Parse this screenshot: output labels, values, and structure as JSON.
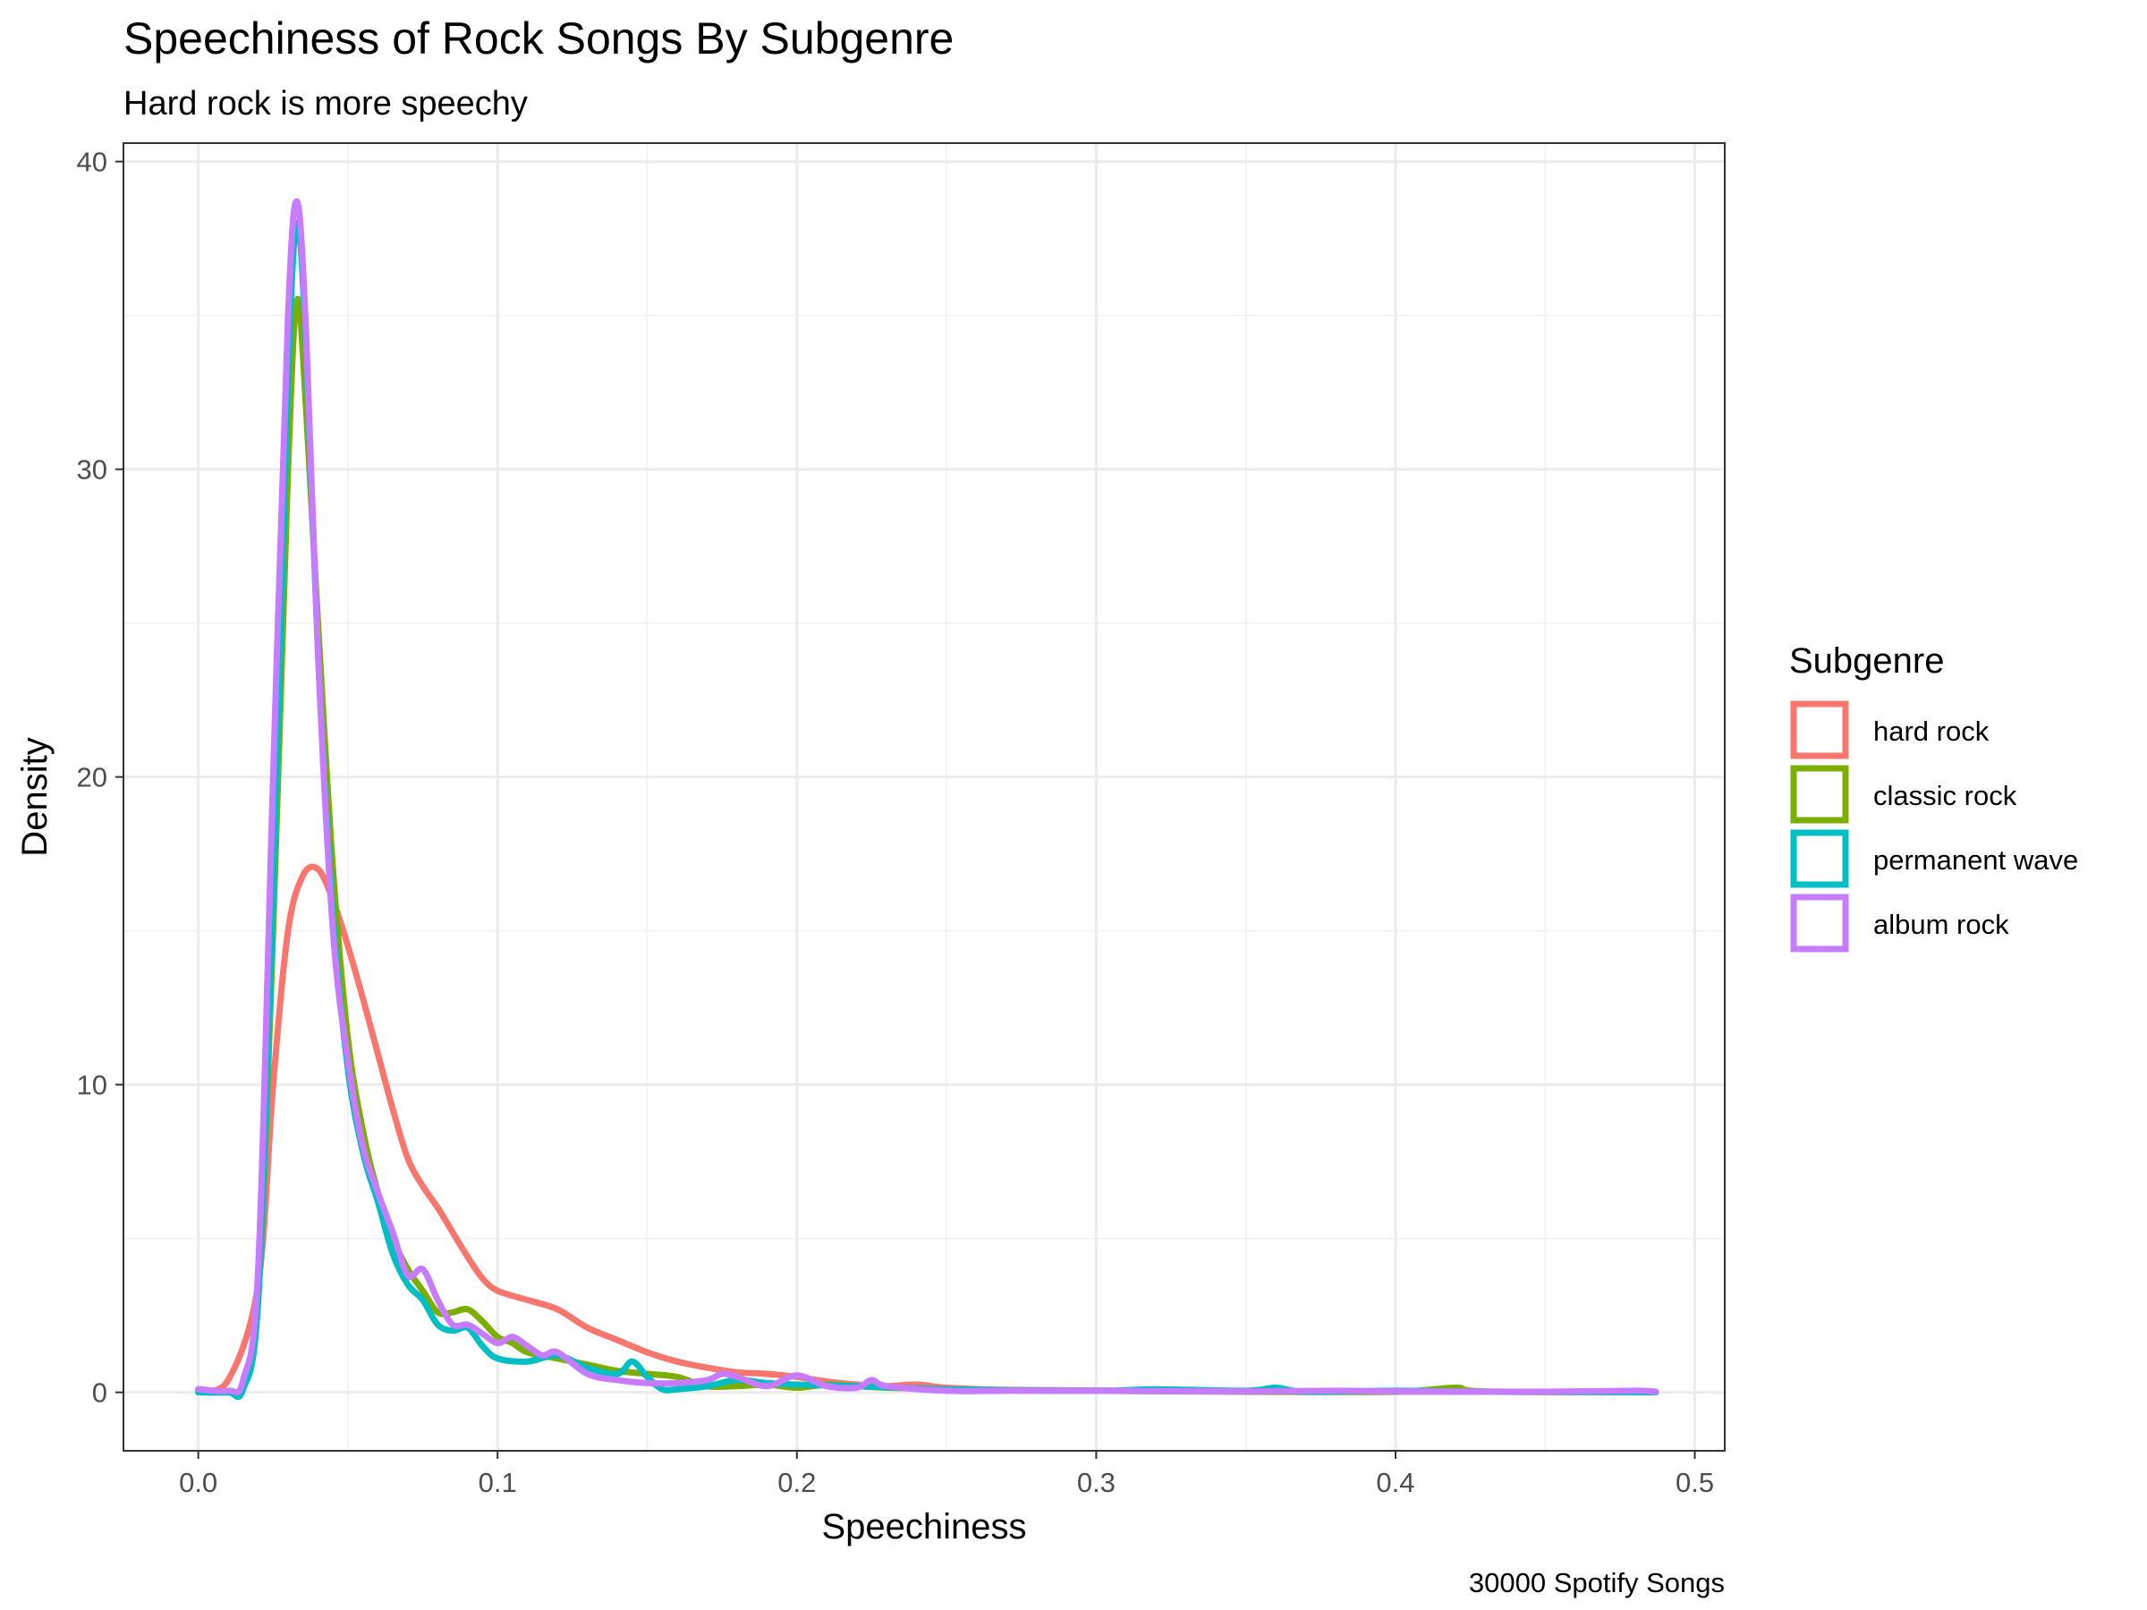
{
  "chart_data": {
    "type": "line",
    "title": "Speechiness of Rock Songs By Subgenre",
    "subtitle": "Hard rock is more speechy",
    "xlabel": "Speechiness",
    "ylabel": "Density",
    "caption": "30000 Spotify Songs",
    "xlim": [
      -0.025,
      0.51
    ],
    "ylim": [
      -1.9,
      40.6
    ],
    "x_ticks": [
      0.0,
      0.1,
      0.2,
      0.3,
      0.4,
      0.5
    ],
    "x_tick_labels": [
      "0.0",
      "0.1",
      "0.2",
      "0.3",
      "0.4",
      "0.5"
    ],
    "y_ticks": [
      0,
      10,
      20,
      30,
      40
    ],
    "y_tick_labels": [
      "0",
      "10",
      "20",
      "30",
      "40"
    ],
    "grid": true,
    "legend": {
      "title": "Subgenre",
      "placement": "right"
    },
    "series": [
      {
        "name": "hard rock",
        "color": "#F8766D",
        "points": [
          [
            0.0,
            0.1
          ],
          [
            0.01,
            0.4
          ],
          [
            0.02,
            3.5
          ],
          [
            0.025,
            10.0
          ],
          [
            0.03,
            15.0
          ],
          [
            0.035,
            16.8
          ],
          [
            0.04,
            17.0
          ],
          [
            0.045,
            16.0
          ],
          [
            0.05,
            14.5
          ],
          [
            0.055,
            12.8
          ],
          [
            0.06,
            11.0
          ],
          [
            0.065,
            9.2
          ],
          [
            0.07,
            7.6
          ],
          [
            0.075,
            6.7
          ],
          [
            0.08,
            6.0
          ],
          [
            0.085,
            5.2
          ],
          [
            0.09,
            4.4
          ],
          [
            0.095,
            3.7
          ],
          [
            0.1,
            3.3
          ],
          [
            0.11,
            3.0
          ],
          [
            0.12,
            2.7
          ],
          [
            0.13,
            2.1
          ],
          [
            0.14,
            1.7
          ],
          [
            0.15,
            1.3
          ],
          [
            0.16,
            1.0
          ],
          [
            0.17,
            0.8
          ],
          [
            0.18,
            0.65
          ],
          [
            0.19,
            0.6
          ],
          [
            0.2,
            0.5
          ],
          [
            0.21,
            0.35
          ],
          [
            0.22,
            0.25
          ],
          [
            0.23,
            0.2
          ],
          [
            0.24,
            0.25
          ],
          [
            0.25,
            0.15
          ],
          [
            0.27,
            0.08
          ],
          [
            0.3,
            0.06
          ],
          [
            0.35,
            0.03
          ],
          [
            0.4,
            0.02
          ],
          [
            0.45,
            0.02
          ],
          [
            0.487,
            0.01
          ]
        ]
      },
      {
        "name": "classic rock",
        "color": "#7CAE00",
        "points": [
          [
            0.0,
            0.1
          ],
          [
            0.01,
            0.0
          ],
          [
            0.015,
            0.3
          ],
          [
            0.02,
            3.0
          ],
          [
            0.025,
            15.0
          ],
          [
            0.03,
            30.0
          ],
          [
            0.033,
            35.5
          ],
          [
            0.036,
            32.0
          ],
          [
            0.04,
            25.0
          ],
          [
            0.045,
            17.0
          ],
          [
            0.05,
            11.5
          ],
          [
            0.055,
            8.5
          ],
          [
            0.06,
            6.5
          ],
          [
            0.065,
            5.0
          ],
          [
            0.07,
            4.0
          ],
          [
            0.075,
            3.3
          ],
          [
            0.08,
            2.6
          ],
          [
            0.085,
            2.6
          ],
          [
            0.09,
            2.7
          ],
          [
            0.095,
            2.3
          ],
          [
            0.1,
            1.8
          ],
          [
            0.105,
            1.6
          ],
          [
            0.11,
            1.3
          ],
          [
            0.12,
            1.1
          ],
          [
            0.13,
            0.9
          ],
          [
            0.14,
            0.7
          ],
          [
            0.15,
            0.6
          ],
          [
            0.16,
            0.5
          ],
          [
            0.17,
            0.2
          ],
          [
            0.18,
            0.2
          ],
          [
            0.19,
            0.25
          ],
          [
            0.2,
            0.15
          ],
          [
            0.21,
            0.25
          ],
          [
            0.22,
            0.2
          ],
          [
            0.23,
            0.15
          ],
          [
            0.25,
            0.1
          ],
          [
            0.28,
            0.05
          ],
          [
            0.3,
            0.05
          ],
          [
            0.35,
            0.02
          ],
          [
            0.4,
            0.02
          ],
          [
            0.42,
            0.15
          ],
          [
            0.43,
            0.03
          ],
          [
            0.487,
            0.0
          ]
        ]
      },
      {
        "name": "permanent wave",
        "color": "#00BFC4",
        "points": [
          [
            0.0,
            0.0
          ],
          [
            0.01,
            0.0
          ],
          [
            0.015,
            0.1
          ],
          [
            0.02,
            3.0
          ],
          [
            0.025,
            16.0
          ],
          [
            0.03,
            33.0
          ],
          [
            0.033,
            38.0
          ],
          [
            0.036,
            34.0
          ],
          [
            0.04,
            24.0
          ],
          [
            0.045,
            15.5
          ],
          [
            0.05,
            10.5
          ],
          [
            0.055,
            7.8
          ],
          [
            0.06,
            6.2
          ],
          [
            0.065,
            4.5
          ],
          [
            0.07,
            3.5
          ],
          [
            0.075,
            3.0
          ],
          [
            0.08,
            2.2
          ],
          [
            0.085,
            2.0
          ],
          [
            0.09,
            2.1
          ],
          [
            0.095,
            1.5
          ],
          [
            0.1,
            1.1
          ],
          [
            0.11,
            1.0
          ],
          [
            0.12,
            1.2
          ],
          [
            0.13,
            0.8
          ],
          [
            0.14,
            0.6
          ],
          [
            0.145,
            1.0
          ],
          [
            0.15,
            0.5
          ],
          [
            0.155,
            0.1
          ],
          [
            0.16,
            0.1
          ],
          [
            0.17,
            0.2
          ],
          [
            0.18,
            0.4
          ],
          [
            0.19,
            0.3
          ],
          [
            0.2,
            0.25
          ],
          [
            0.22,
            0.2
          ],
          [
            0.25,
            0.1
          ],
          [
            0.3,
            0.05
          ],
          [
            0.32,
            0.1
          ],
          [
            0.35,
            0.05
          ],
          [
            0.36,
            0.15
          ],
          [
            0.37,
            0.02
          ],
          [
            0.4,
            0.05
          ],
          [
            0.43,
            0.02
          ],
          [
            0.487,
            0.0
          ]
        ]
      },
      {
        "name": "album rock",
        "color": "#C77CFF",
        "points": [
          [
            0.0,
            0.1
          ],
          [
            0.01,
            0.05
          ],
          [
            0.015,
            0.4
          ],
          [
            0.02,
            4.0
          ],
          [
            0.025,
            20.0
          ],
          [
            0.03,
            35.0
          ],
          [
            0.033,
            38.7
          ],
          [
            0.036,
            34.5
          ],
          [
            0.04,
            24.0
          ],
          [
            0.045,
            15.0
          ],
          [
            0.05,
            10.8
          ],
          [
            0.055,
            8.0
          ],
          [
            0.06,
            6.5
          ],
          [
            0.065,
            5.2
          ],
          [
            0.07,
            3.8
          ],
          [
            0.075,
            4.0
          ],
          [
            0.08,
            3.0
          ],
          [
            0.085,
            2.2
          ],
          [
            0.09,
            2.2
          ],
          [
            0.095,
            1.9
          ],
          [
            0.1,
            1.6
          ],
          [
            0.105,
            1.8
          ],
          [
            0.11,
            1.5
          ],
          [
            0.115,
            1.2
          ],
          [
            0.12,
            1.3
          ],
          [
            0.13,
            0.6
          ],
          [
            0.14,
            0.4
          ],
          [
            0.15,
            0.3
          ],
          [
            0.16,
            0.3
          ],
          [
            0.17,
            0.4
          ],
          [
            0.175,
            0.6
          ],
          [
            0.18,
            0.5
          ],
          [
            0.19,
            0.2
          ],
          [
            0.2,
            0.55
          ],
          [
            0.21,
            0.2
          ],
          [
            0.22,
            0.15
          ],
          [
            0.225,
            0.4
          ],
          [
            0.23,
            0.2
          ],
          [
            0.25,
            0.05
          ],
          [
            0.27,
            0.05
          ],
          [
            0.3,
            0.05
          ],
          [
            0.35,
            0.03
          ],
          [
            0.38,
            0.05
          ],
          [
            0.4,
            0.03
          ],
          [
            0.45,
            0.02
          ],
          [
            0.48,
            0.05
          ],
          [
            0.487,
            0.02
          ]
        ]
      }
    ]
  }
}
